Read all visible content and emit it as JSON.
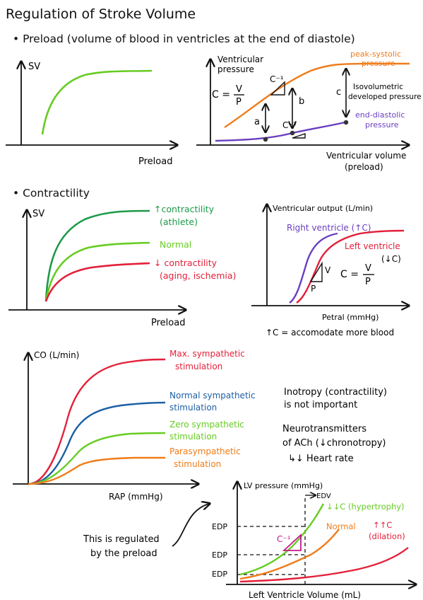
{
  "title": "Regulation of Stroke Volume",
  "section_preload": {
    "heading": "• Preload (volume of blood in ventricles at the end of diastole)",
    "g1": {
      "ylabel": "SV",
      "xlabel": "Preload"
    },
    "g2": {
      "ylabel_line1": "Ventricular",
      "ylabel_line2": "pressure",
      "xlabel_line1": "Ventricular volume",
      "xlabel_line2": "(preload)",
      "formula_lhs": "C =",
      "formula_num": "V",
      "formula_den": "P",
      "c_inv_top": "C⁻¹",
      "c_inv_bottom": "C⁻¹",
      "arrow_a": "a",
      "arrow_b": "b",
      "arrow_c": "c",
      "peak_line1": "peak-systolic",
      "peak_line2": "pressure",
      "iso_line1": "Isovolumetric",
      "iso_line2": "developed pressure",
      "end_line1": "end-diastolic",
      "end_line2": "pressure"
    }
  },
  "section_contractility": {
    "heading": "• Contractility",
    "g3": {
      "ylabel": "SV",
      "xlabel": "Preload",
      "athlete_line1": "↑contractility",
      "athlete_line2": "(athlete)",
      "normal": "Normal",
      "aging_line1": "↓ contractility",
      "aging_line2": "(aging, ischemia)"
    },
    "g4": {
      "ylabel": "Ventricular output (L/min)",
      "xlabel": "Petral (mmHg)",
      "right_label": "Right ventricle (↑C)",
      "left_line1": "Left ventricle",
      "left_line2": "(↓C)",
      "v_mark": "V",
      "p_mark": "P",
      "formula_lhs": "C =",
      "formula_num": "V",
      "formula_den": "P",
      "note": "↑C = accomodate more blood"
    }
  },
  "section_co": {
    "g5": {
      "ylabel": "CO (L/min)",
      "xlabel": "RAP (mmHg)",
      "max_line1": "Max. sympathetic",
      "max_line2": "stimulation",
      "normal_line1": "Normal sympathetic",
      "normal_line2": "stimulation",
      "zero_line1": "Zero sympathetic",
      "zero_line2": "stimulation",
      "para_line1": "Parasympathetic",
      "para_line2": "stimulation"
    },
    "notes": {
      "ino_line1": "Inotropy (contractility)",
      "ino_line2": "is not important",
      "neuro_line1": "Neurotransmitters",
      "neuro_line2": "of ACh (↓chronotropy)",
      "neuro_line3": "↳↓ Heart rate"
    },
    "g6": {
      "ylabel": "LV pressure (mmHg)",
      "xlabel": "Left Ventricle Volume (mL)",
      "edv": "EDV",
      "edp1": "EDP",
      "edp2": "EDP",
      "edp3": "EDP",
      "hyper": "↓↓C (hypertrophy)",
      "normal": "Normal",
      "dil_line1": "↑↑C",
      "dil_line2": "(dilation)",
      "c_inv": "C⁻¹"
    },
    "regulated_line1": "This is regulated",
    "regulated_line2": "by the preload"
  },
  "colors": {
    "ink": "#111111",
    "green": "#66cc22",
    "dark_green": "#1e9a4a",
    "red": "#e3203a",
    "orange": "#f07c1a",
    "purple": "#6a3fc0",
    "blue": "#1c5fa3",
    "magenta": "#c21a8a"
  }
}
